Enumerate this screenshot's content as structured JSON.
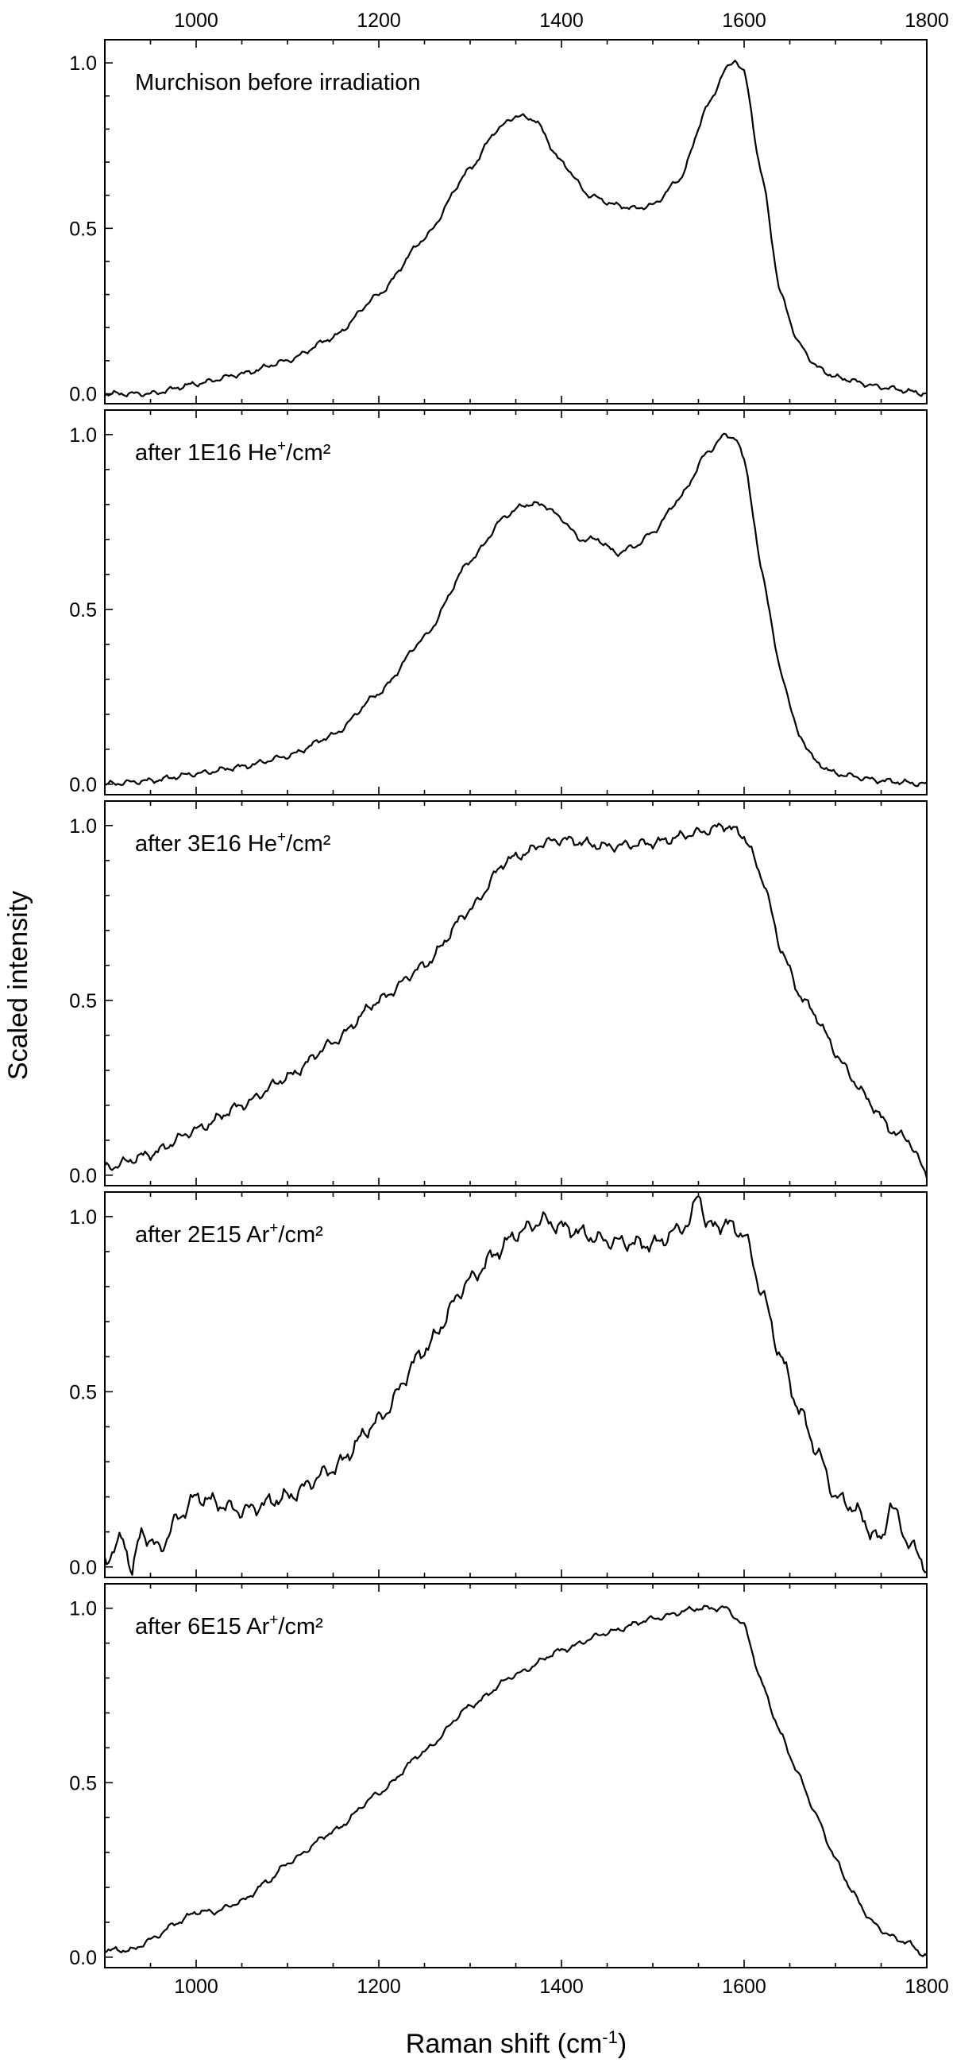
{
  "chart_data": {
    "type": "line",
    "xlabel": {
      "base": "Raman shift (cm",
      "sup": "-1",
      "end": ")"
    },
    "ylabel": "Scaled intensity",
    "xlim": [
      900,
      1800
    ],
    "ylim": [
      -0.03,
      1.07
    ],
    "x_ticks": [
      1000,
      1200,
      1400,
      1600,
      1800
    ],
    "x_tick_labels": [
      "1000",
      "1200",
      "1400",
      "1600",
      "1800"
    ],
    "y_ticks": [
      0.0,
      0.5,
      1.0
    ],
    "y_tick_labels": [
      "0.0",
      "0.5",
      "1.0"
    ],
    "shared_x_axis": true,
    "x_tick_labels_position": "top and bottom",
    "grid": false,
    "legend": "none (in-panel text labels at top-left)",
    "line_color": "#000000",
    "panels": [
      {
        "label": {
          "pre": "Murchison before irradiation",
          "sup": "",
          "post": ""
        },
        "x": [
          900,
          950,
          1000,
          1050,
          1100,
          1150,
          1200,
          1250,
          1300,
          1330,
          1350,
          1370,
          1400,
          1430,
          1460,
          1480,
          1500,
          1530,
          1560,
          1580,
          1590,
          1600,
          1620,
          1640,
          1660,
          1680,
          1700,
          1750,
          1800
        ],
        "y": [
          0.0,
          0.0,
          0.03,
          0.06,
          0.1,
          0.17,
          0.3,
          0.47,
          0.68,
          0.8,
          0.84,
          0.83,
          0.7,
          0.6,
          0.57,
          0.56,
          0.57,
          0.65,
          0.87,
          0.98,
          1.01,
          0.97,
          0.65,
          0.3,
          0.15,
          0.08,
          0.05,
          0.02,
          0.0
        ]
      },
      {
        "label": {
          "pre": "after 1E16 He",
          "sup": "+",
          "post": "/cm²"
        },
        "x": [
          900,
          950,
          1000,
          1050,
          1100,
          1150,
          1200,
          1250,
          1300,
          1340,
          1360,
          1380,
          1400,
          1420,
          1440,
          1460,
          1480,
          1500,
          1530,
          1560,
          1580,
          1590,
          1600,
          1620,
          1640,
          1660,
          1680,
          1700,
          1750,
          1800
        ],
        "y": [
          0.0,
          0.01,
          0.03,
          0.05,
          0.08,
          0.14,
          0.26,
          0.42,
          0.64,
          0.77,
          0.8,
          0.8,
          0.76,
          0.7,
          0.7,
          0.66,
          0.68,
          0.72,
          0.82,
          0.95,
          1.0,
          0.99,
          0.93,
          0.6,
          0.32,
          0.14,
          0.06,
          0.03,
          0.01,
          0.0
        ]
      },
      {
        "label": {
          "pre": "after 3E16 He",
          "sup": "+",
          "post": "/cm²"
        },
        "x": [
          900,
          950,
          1000,
          1050,
          1100,
          1150,
          1200,
          1250,
          1300,
          1340,
          1360,
          1380,
          1400,
          1450,
          1500,
          1550,
          1580,
          1600,
          1620,
          1640,
          1660,
          1680,
          1700,
          1720,
          1740,
          1760,
          1780,
          1800
        ],
        "y": [
          0.02,
          0.06,
          0.13,
          0.2,
          0.28,
          0.38,
          0.5,
          0.6,
          0.76,
          0.9,
          0.92,
          0.95,
          0.96,
          0.94,
          0.95,
          0.98,
          1.0,
          0.97,
          0.85,
          0.65,
          0.52,
          0.45,
          0.35,
          0.27,
          0.2,
          0.13,
          0.1,
          0.0
        ]
      },
      {
        "label": {
          "pre": "after 2E15 Ar",
          "sup": "+",
          "post": "/cm²"
        },
        "x": [
          900,
          920,
          930,
          940,
          960,
          980,
          1000,
          1050,
          1100,
          1150,
          1200,
          1250,
          1300,
          1330,
          1350,
          1380,
          1400,
          1450,
          1500,
          1540,
          1550,
          1560,
          1580,
          1600,
          1620,
          1640,
          1660,
          1680,
          1700,
          1720,
          1740,
          1750,
          1760,
          1780,
          1800
        ],
        "y": [
          0.02,
          0.08,
          -0.01,
          0.1,
          0.05,
          0.14,
          0.2,
          0.16,
          0.2,
          0.28,
          0.42,
          0.62,
          0.82,
          0.9,
          0.95,
          0.99,
          0.97,
          0.93,
          0.92,
          0.98,
          1.07,
          0.97,
          0.98,
          0.95,
          0.78,
          0.6,
          0.45,
          0.33,
          0.2,
          0.17,
          0.1,
          0.07,
          0.18,
          0.07,
          0.0
        ]
      },
      {
        "label": {
          "pre": "after 6E15 Ar",
          "sup": "+",
          "post": "/cm²"
        },
        "x": [
          900,
          930,
          950,
          980,
          1000,
          1020,
          1050,
          1080,
          1100,
          1150,
          1200,
          1250,
          1300,
          1350,
          1400,
          1450,
          1500,
          1550,
          1580,
          1600,
          1620,
          1640,
          1660,
          1680,
          1700,
          1720,
          1740,
          1760,
          1780,
          1800
        ],
        "y": [
          0.02,
          0.02,
          0.05,
          0.1,
          0.13,
          0.13,
          0.16,
          0.22,
          0.27,
          0.36,
          0.47,
          0.59,
          0.72,
          0.81,
          0.88,
          0.93,
          0.97,
          1.0,
          1.0,
          0.95,
          0.78,
          0.64,
          0.52,
          0.4,
          0.28,
          0.18,
          0.1,
          0.06,
          0.04,
          0.0
        ]
      }
    ]
  }
}
